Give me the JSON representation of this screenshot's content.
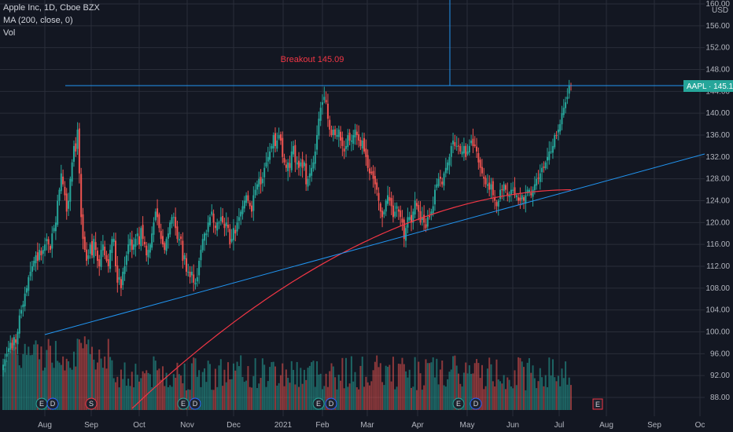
{
  "legend": {
    "symbol_line": "Apple Inc, 1D, Cboe BZX",
    "ma_line": "MA (200, close, 0)",
    "vol_line": "Vol"
  },
  "currency": "USD",
  "price_tag": "AAPL · 145.11",
  "annotation": "Breakout 145.09",
  "colors": {
    "bg": "#131722",
    "up": "#26a69a",
    "down": "#ef5350",
    "ma": "#f23645",
    "trend": "#2962ff",
    "grid": "#2a2e39",
    "tag": "#26a69a"
  },
  "chart_data": {
    "type": "candlestick",
    "title": "Apple Inc, 1D, Cboe BZX",
    "x_tick_labels": [
      "Aug",
      "Sep",
      "Oct",
      "Nov",
      "Dec",
      "2021",
      "Feb",
      "Mar",
      "Apr",
      "May",
      "Jun",
      "Jul",
      "Aug",
      "Sep",
      "Oc"
    ],
    "y_tick_labels": [
      "88.00",
      "92.00",
      "96.00",
      "100.00",
      "104.00",
      "108.00",
      "112.00",
      "116.00",
      "120.00",
      "124.00",
      "128.00",
      "132.00",
      "136.00",
      "140.00",
      "144.00",
      "148.00",
      "152.00",
      "156.00",
      "160.00"
    ],
    "ylim": [
      86,
      160
    ],
    "closes": [
      94,
      95,
      96,
      97,
      98,
      97,
      99,
      98,
      100,
      103,
      104,
      105,
      107,
      108,
      110,
      111,
      112,
      113,
      114,
      113,
      115,
      114,
      115,
      116,
      117,
      116,
      115,
      118,
      119,
      120,
      124,
      126,
      129,
      127,
      125,
      122,
      124,
      128,
      131,
      134,
      133,
      137,
      129,
      121,
      117,
      115,
      113,
      114,
      116,
      114,
      117,
      115,
      113,
      112,
      115,
      116,
      114,
      113,
      112,
      115,
      117,
      117,
      112,
      109,
      110,
      108,
      111,
      112,
      114,
      116,
      117,
      115,
      116,
      117,
      118,
      116,
      119,
      117,
      116,
      114,
      115,
      116,
      118,
      120,
      122,
      121,
      119,
      117,
      116,
      115,
      117,
      118,
      120,
      121,
      121,
      119,
      117,
      117,
      117,
      113,
      114,
      111,
      111,
      110,
      111,
      109,
      109,
      110,
      113,
      115,
      117,
      118,
      118,
      120,
      121,
      122,
      120,
      119,
      120,
      120,
      121,
      120,
      119,
      120,
      119,
      116,
      117,
      119,
      118,
      120,
      121,
      122,
      123,
      124,
      125,
      124,
      123,
      122,
      125,
      126,
      127,
      128,
      127,
      128,
      130,
      131,
      132,
      133,
      134,
      136,
      134,
      135,
      136,
      135,
      132,
      131,
      130,
      131,
      130,
      133,
      134,
      131,
      131,
      130,
      131,
      130,
      131,
      127,
      128,
      129,
      130,
      131,
      133,
      136,
      139,
      141,
      142,
      143,
      142,
      139,
      137,
      136,
      137,
      136,
      136,
      137,
      135,
      134,
      133,
      134,
      136,
      135,
      135,
      136,
      137,
      136,
      135,
      134,
      135,
      133,
      132,
      130,
      129,
      129,
      128,
      127,
      126,
      124,
      122,
      121,
      122,
      124,
      125,
      124,
      123,
      121,
      122,
      123,
      122,
      121,
      120,
      117,
      119,
      121,
      121,
      120,
      122,
      124,
      123,
      122,
      120,
      121,
      120,
      119,
      121,
      121,
      122,
      123,
      126,
      127,
      128,
      128,
      127,
      129,
      130,
      131,
      132,
      134,
      135,
      134,
      134,
      134,
      133,
      133,
      134,
      132,
      133,
      134,
      135,
      134,
      134,
      133,
      131,
      130,
      129,
      128,
      127,
      127,
      126,
      127,
      125,
      124,
      123,
      124,
      126,
      126,
      127,
      126,
      125,
      125,
      126,
      126,
      125,
      125,
      124,
      124,
      125,
      124,
      125,
      126,
      126,
      125,
      126,
      127,
      128,
      128,
      129,
      130,
      130,
      131,
      132,
      133,
      133,
      134,
      136,
      136,
      137,
      138,
      140,
      141,
      142,
      143,
      145,
      145
    ]
  }
}
